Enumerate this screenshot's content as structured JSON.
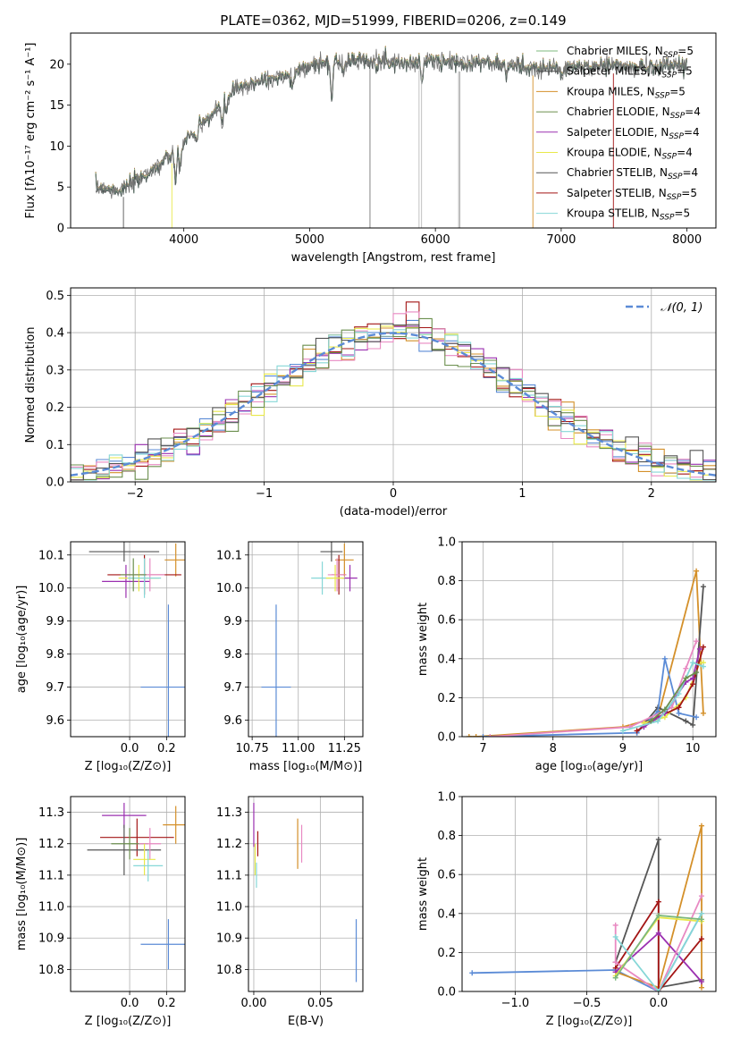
{
  "figure_title": "PLATE=0362, MJD=51999, FIBERID=0206, z=0.149",
  "models": [
    {
      "name": "Chabrier MILES",
      "nssp": "5",
      "color": "#7cb87c"
    },
    {
      "name": "Salpeter MILES",
      "nssp": "5",
      "color": "#4d4d4d"
    },
    {
      "name": "Kroupa MILES",
      "nssp": "5",
      "color": "#d4902a"
    },
    {
      "name": "Chabrier ELODIE",
      "nssp": "4",
      "color": "#6b8f4e"
    },
    {
      "name": "Salpeter ELODIE",
      "nssp": "4",
      "color": "#9b30b0"
    },
    {
      "name": "Kroupa ELODIE",
      "nssp": "4",
      "color": "#e8e84a"
    },
    {
      "name": "Chabrier STELIB",
      "nssp": "4",
      "color": "#555555"
    },
    {
      "name": "Salpeter STELIB",
      "nssp": "5",
      "color": "#a31515"
    },
    {
      "name": "Kroupa STELIB",
      "nssp": "5",
      "color": "#86d7d7"
    }
  ],
  "chart_data": [
    {
      "id": "spectrum",
      "type": "line",
      "xlabel": "wavelength [Angstrom, rest frame]",
      "ylabel": "Flux [fλ10⁻¹⁷ erg cm⁻² s⁻¹ A⁻¹]",
      "xlim": [
        3100,
        8230
      ],
      "ylim": [
        0,
        23.8
      ],
      "xticks": [
        4000,
        5000,
        6000,
        7000,
        8000
      ],
      "yticks": [
        0,
        5,
        10,
        15,
        20
      ],
      "legend": "top-right",
      "continuum": {
        "x": [
          3300,
          3500,
          3700,
          3900,
          4000,
          4200,
          4400,
          4600,
          4800,
          5000,
          5200,
          5400,
          5600,
          5800,
          6000,
          6200,
          6400,
          6600,
          6800,
          7000,
          7200,
          7400,
          7600,
          7800,
          8000
        ],
        "y": [
          5.0,
          4.6,
          6.5,
          8.8,
          10.5,
          13.5,
          16.8,
          18.0,
          18.5,
          19.8,
          20.3,
          20.6,
          20.3,
          20.1,
          20.5,
          20.1,
          20.3,
          19.8,
          19.6,
          19.5,
          19.7,
          19.9,
          19.6,
          19.8,
          19.9
        ]
      },
      "spikes_x": [
        3520,
        3905,
        5480,
        5870,
        5890,
        6185,
        6195,
        6775,
        7415
      ]
    },
    {
      "id": "residuals",
      "type": "bar",
      "xlabel": "(data-model)/error",
      "ylabel": "Normed distribution",
      "xlim": [
        -2.5,
        2.5
      ],
      "ylim": [
        0,
        0.52
      ],
      "xticks": [
        -2,
        -1,
        0,
        1,
        2
      ],
      "yticks": [
        0,
        0.1,
        0.2,
        0.3,
        0.4,
        0.5
      ],
      "grid": true,
      "legend": "top-right",
      "gaussian_label": "𝒩(0, 1)",
      "gaussian_color": "#5b8bd6",
      "bin_width": 0.1
    },
    {
      "id": "age_vs_Z",
      "type": "scatter",
      "xlabel": "Z [log₁₀(Z/Z⊙)]",
      "ylabel": "age  [log₁₀(age/yr)]",
      "xlim": [
        -0.32,
        0.3
      ],
      "ylim": [
        9.55,
        10.14
      ],
      "xticks": [
        0.0,
        0.2
      ],
      "yticks": [
        9.6,
        9.7,
        9.8,
        9.9,
        10.0,
        10.1
      ],
      "grid": true,
      "points": [
        {
          "color": "#555555",
          "x": -0.03,
          "xerr": 0.19,
          "y": 10.11,
          "yerr": 0.03
        },
        {
          "color": "#d4902a",
          "x": 0.25,
          "xerr": 0.06,
          "y": 10.085,
          "yerr": 0.05
        },
        {
          "color": "#a31515",
          "x": 0.08,
          "xerr": 0.2,
          "y": 10.04,
          "yerr": 0.06
        },
        {
          "color": "#9b30b0",
          "x": -0.02,
          "xerr": 0.13,
          "y": 10.02,
          "yerr": 0.05
        },
        {
          "color": "#e8e84a",
          "x": 0.05,
          "xerr": 0.11,
          "y": 10.03,
          "yerr": 0.04
        },
        {
          "color": "#e889c2",
          "x": 0.11,
          "xerr": 0.08,
          "y": 10.04,
          "yerr": 0.05
        },
        {
          "color": "#86d7d7",
          "x": 0.08,
          "xerr": 0.09,
          "y": 10.03,
          "yerr": 0.06
        },
        {
          "color": "#6b8f4e",
          "x": 0.02,
          "xerr": 0.07,
          "y": 10.04,
          "yerr": 0.05
        },
        {
          "color": "#5b8bd6",
          "x": 0.21,
          "xerr": 0.15,
          "y": 9.7,
          "yerr": 0.25
        }
      ]
    },
    {
      "id": "age_vs_mass",
      "type": "scatter",
      "xlabel": "mass [log₁₀(M/M⊙)]",
      "ylabel": "",
      "xlim": [
        10.73,
        11.35
      ],
      "ylim": [
        9.55,
        10.14
      ],
      "xticks": [
        10.75,
        11.0,
        11.25
      ],
      "yticks": [
        9.6,
        9.7,
        9.8,
        9.9,
        10.0,
        10.1
      ],
      "grid": true,
      "points": [
        {
          "color": "#555555",
          "x": 11.18,
          "xerr": 0.06,
          "y": 10.11,
          "yerr": 0.03
        },
        {
          "color": "#d4902a",
          "x": 11.25,
          "xerr": 0.05,
          "y": 10.085,
          "yerr": 0.05
        },
        {
          "color": "#a31515",
          "x": 11.22,
          "xerr": 0.04,
          "y": 10.04,
          "yerr": 0.06
        },
        {
          "color": "#9b30b0",
          "x": 11.28,
          "xerr": 0.04,
          "y": 10.03,
          "yerr": 0.04
        },
        {
          "color": "#86d7d7",
          "x": 11.13,
          "xerr": 0.06,
          "y": 10.03,
          "yerr": 0.05
        },
        {
          "color": "#e889c2",
          "x": 11.21,
          "xerr": 0.05,
          "y": 10.04,
          "yerr": 0.05
        },
        {
          "color": "#e8e84a",
          "x": 11.2,
          "xerr": 0.05,
          "y": 10.03,
          "yerr": 0.04
        },
        {
          "color": "#5b8bd6",
          "x": 10.88,
          "xerr": 0.08,
          "y": 9.7,
          "yerr": 0.25
        }
      ]
    },
    {
      "id": "mass_weight_vs_age",
      "type": "line",
      "xlabel": "age  [log₁₀(age/yr)]",
      "ylabel": "mass weight",
      "xlim": [
        6.7,
        10.33
      ],
      "ylim": [
        0,
        1.0
      ],
      "xticks": [
        7,
        8,
        9,
        10
      ],
      "yticks": [
        0,
        0.2,
        0.4,
        0.6,
        0.8,
        1.0
      ],
      "grid": true,
      "series": [
        {
          "color": "#d4902a",
          "x": [
            6.8,
            6.9,
            9.0,
            9.5,
            10.05,
            10.15
          ],
          "y": [
            0.0,
            0.0,
            0.05,
            0.1,
            0.85,
            0.12
          ]
        },
        {
          "color": "#555555",
          "x": [
            9.2,
            9.5,
            9.9,
            10.0,
            10.15
          ],
          "y": [
            0.02,
            0.15,
            0.08,
            0.06,
            0.77
          ]
        },
        {
          "color": "#5b8bd6",
          "x": [
            7.0,
            9.2,
            9.5,
            9.6,
            9.8,
            10.05
          ],
          "y": [
            0.0,
            0.02,
            0.13,
            0.4,
            0.12,
            0.1
          ]
        },
        {
          "color": "#e889c2",
          "x": [
            7.1,
            9.1,
            9.7,
            9.9,
            10.05
          ],
          "y": [
            0.0,
            0.05,
            0.15,
            0.35,
            0.49
          ]
        },
        {
          "color": "#e8e84a",
          "x": [
            9.3,
            9.6,
            9.9,
            10.1,
            10.15
          ],
          "y": [
            0.07,
            0.1,
            0.2,
            0.38,
            0.38
          ]
        },
        {
          "color": "#a31515",
          "x": [
            9.2,
            9.5,
            9.8,
            10.0,
            10.15
          ],
          "y": [
            0.03,
            0.1,
            0.15,
            0.27,
            0.46
          ]
        },
        {
          "color": "#9b30b0",
          "x": [
            9.3,
            9.6,
            9.9,
            10.0,
            10.1
          ],
          "y": [
            0.05,
            0.12,
            0.28,
            0.3,
            0.45
          ]
        },
        {
          "color": "#86d7d7",
          "x": [
            9.0,
            9.5,
            9.8,
            10.0,
            10.15
          ],
          "y": [
            0.03,
            0.08,
            0.22,
            0.38,
            0.36
          ]
        },
        {
          "color": "#6b8f4e",
          "x": [
            9.4,
            9.6,
            9.9,
            10.05
          ],
          "y": [
            0.08,
            0.14,
            0.3,
            0.33
          ]
        }
      ]
    },
    {
      "id": "mass_vs_Z",
      "type": "scatter",
      "xlabel": "Z [log₁₀(Z/Z⊙)]",
      "ylabel": "mass [log₁₀(M/M⊙)]",
      "xlim": [
        -0.32,
        0.3
      ],
      "ylim": [
        10.73,
        11.35
      ],
      "xticks": [
        0.0,
        0.2
      ],
      "yticks": [
        10.8,
        10.9,
        11.0,
        11.1,
        11.2,
        11.3
      ],
      "grid": true,
      "points": [
        {
          "color": "#9b30b0",
          "x": -0.03,
          "xerr": 0.12,
          "y": 11.29,
          "yerr": 0.04
        },
        {
          "color": "#d4902a",
          "x": 0.25,
          "xerr": 0.07,
          "y": 11.26,
          "yerr": 0.06
        },
        {
          "color": "#a31515",
          "x": 0.04,
          "xerr": 0.2,
          "y": 11.22,
          "yerr": 0.06
        },
        {
          "color": "#555555",
          "x": -0.03,
          "xerr": 0.2,
          "y": 11.18,
          "yerr": 0.08
        },
        {
          "color": "#6b8f4e",
          "x": 0.0,
          "xerr": 0.1,
          "y": 11.2,
          "yerr": 0.05
        },
        {
          "color": "#e889c2",
          "x": 0.11,
          "xerr": 0.06,
          "y": 11.2,
          "yerr": 0.05
        },
        {
          "color": "#e8e84a",
          "x": 0.08,
          "xerr": 0.06,
          "y": 11.15,
          "yerr": 0.05
        },
        {
          "color": "#86d7d7",
          "x": 0.1,
          "xerr": 0.08,
          "y": 11.13,
          "yerr": 0.05
        },
        {
          "color": "#5b8bd6",
          "x": 0.21,
          "xerr": 0.15,
          "y": 10.88,
          "yerr": 0.08
        }
      ]
    },
    {
      "id": "mass_vs_EBV",
      "type": "scatter",
      "xlabel": "E(B-V)",
      "ylabel": "",
      "xlim": [
        -0.004,
        0.082
      ],
      "ylim": [
        10.73,
        11.35
      ],
      "xticks": [
        0.0,
        0.05
      ],
      "yticks": [
        10.8,
        10.9,
        11.0,
        11.1,
        11.2,
        11.3
      ],
      "grid": true,
      "points": [
        {
          "color": "#9b30b0",
          "x": 0.0,
          "y": 11.26,
          "yerr": 0.07
        },
        {
          "color": "#e8e84a",
          "x": 0.001,
          "y": 11.15,
          "yerr": 0.05
        },
        {
          "color": "#86d7d7",
          "x": 0.002,
          "y": 11.1,
          "yerr": 0.04
        },
        {
          "color": "#a31515",
          "x": 0.003,
          "y": 11.2,
          "yerr": 0.04
        },
        {
          "color": "#d4902a",
          "x": 0.033,
          "y": 11.2,
          "yerr": 0.08
        },
        {
          "color": "#e889c2",
          "x": 0.036,
          "y": 11.2,
          "yerr": 0.06
        },
        {
          "color": "#5b8bd6",
          "x": 0.077,
          "y": 10.86,
          "yerr": 0.1
        }
      ]
    },
    {
      "id": "mass_weight_vs_Z",
      "type": "line",
      "xlabel": "Z [log₁₀(Z/Z⊙)]",
      "ylabel": "mass weight",
      "xlim": [
        -1.37,
        0.4
      ],
      "ylim": [
        0,
        1.0
      ],
      "xticks": [
        -1.0,
        -0.5,
        0.0
      ],
      "yticks": [
        0,
        0.2,
        0.4,
        0.6,
        0.8,
        1.0
      ],
      "grid": true,
      "series": [
        {
          "color": "#5b8bd6",
          "x": [
            -1.3,
            -0.3,
            0.0,
            0.3
          ],
          "y": [
            0.095,
            0.11,
            0.0,
            0.4
          ]
        },
        {
          "color": "#555555",
          "x": [
            -0.3,
            0.0,
            0.0,
            0.3
          ],
          "y": [
            0.15,
            0.78,
            0.02,
            0.06
          ]
        },
        {
          "color": "#d4902a",
          "x": [
            -0.3,
            0.0,
            0.3,
            0.3
          ],
          "y": [
            0.1,
            0.02,
            0.85,
            0.02
          ]
        },
        {
          "color": "#a31515",
          "x": [
            -0.3,
            0.0,
            0.0,
            0.3
          ],
          "y": [
            0.12,
            0.46,
            0.0,
            0.27
          ]
        },
        {
          "color": "#9b30b0",
          "x": [
            -0.3,
            0.0,
            0.3
          ],
          "y": [
            0.1,
            0.3,
            0.05
          ]
        },
        {
          "color": "#e889c2",
          "x": [
            -0.3,
            -0.3,
            0.0,
            0.3
          ],
          "y": [
            0.34,
            0.15,
            0.0,
            0.49
          ]
        },
        {
          "color": "#e8e84a",
          "x": [
            -0.3,
            0.0,
            0.3
          ],
          "y": [
            0.08,
            0.38,
            0.36
          ]
        },
        {
          "color": "#86d7d7",
          "x": [
            -0.3,
            0.0,
            0.3
          ],
          "y": [
            0.28,
            0.0,
            0.4
          ]
        },
        {
          "color": "#7cb87c",
          "x": [
            -0.3,
            0.0,
            0.3
          ],
          "y": [
            0.07,
            0.39,
            0.37
          ]
        }
      ]
    }
  ]
}
